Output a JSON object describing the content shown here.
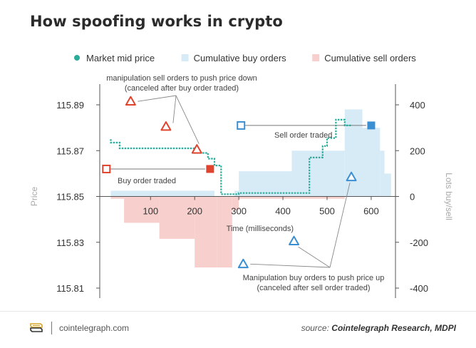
{
  "title": "How spoofing works in crypto",
  "footer": {
    "brand": "cointelegraph.com",
    "source_prefix": "source:",
    "source_text": "Cointelegraph Research, MDPI"
  },
  "colors": {
    "mid_price": "#2bab99",
    "buy_fill": "#d7ebf7",
    "sell_fill": "#f7d0cd",
    "red_marker": "#e0442f",
    "blue_marker": "#3a8fd2",
    "axis_text": "#333333",
    "label_text": "#444444",
    "faint_text": "#aaaaaa"
  },
  "chart_data": {
    "type": "line",
    "legend": [
      {
        "label": "Market mid price",
        "kind": "dot",
        "color": "#2bab99"
      },
      {
        "label": "Cumulative buy orders",
        "kind": "square",
        "color": "#d7ebf7"
      },
      {
        "label": "Cumulative sell orders",
        "kind": "square",
        "color": "#f7d0cd"
      }
    ],
    "xlabel": "Time (milliseconds)",
    "ylabel_left": "Price",
    "ylabel_right": "Lots buy/sell",
    "x_ticks": [
      100,
      200,
      300,
      400,
      500,
      600
    ],
    "x_range": [
      -15,
      655
    ],
    "y_left_range": [
      115.81,
      115.89
    ],
    "y_left_ticks": [
      115.89,
      115.87,
      115.85,
      115.83,
      115.81
    ],
    "y_right_range": [
      -400,
      400
    ],
    "y_right_ticks": [
      400,
      200,
      0,
      -200,
      -400
    ],
    "mid_price": {
      "x": [
        10,
        10,
        30,
        30,
        200,
        200,
        230,
        230,
        245,
        245,
        260,
        260,
        300,
        300,
        460,
        460,
        490,
        490,
        500,
        500,
        520,
        520,
        540,
        540,
        555
      ],
      "y": [
        115.875,
        115.8735,
        115.8735,
        115.871,
        115.871,
        115.869,
        115.869,
        115.8665,
        115.8665,
        115.8635,
        115.8635,
        115.851,
        115.851,
        115.8515,
        115.8515,
        115.867,
        115.867,
        115.872,
        115.872,
        115.8755,
        115.8755,
        115.8835,
        115.8835,
        115.881,
        115.881
      ]
    },
    "buy_orders": [
      {
        "x0": 10,
        "x1": 245,
        "value": 25
      },
      {
        "x0": 290,
        "x1": 300,
        "value": 25
      },
      {
        "x0": 300,
        "x1": 420,
        "value": 110
      },
      {
        "x0": 420,
        "x1": 540,
        "value": 200
      },
      {
        "x0": 540,
        "x1": 580,
        "value": 380
      },
      {
        "x0": 580,
        "x1": 620,
        "value": 300
      },
      {
        "x0": 620,
        "x1": 630,
        "value": 200
      },
      {
        "x0": 630,
        "x1": 645,
        "value": 100
      }
    ],
    "sell_orders": [
      {
        "x0": 10,
        "x1": 40,
        "value": -10
      },
      {
        "x0": 40,
        "x1": 120,
        "value": -115
      },
      {
        "x0": 120,
        "x1": 200,
        "value": -185
      },
      {
        "x0": 200,
        "x1": 250,
        "value": -310
      },
      {
        "x0": 250,
        "x1": 285,
        "value": -310
      },
      {
        "x0": 285,
        "x1": 300,
        "value": -60
      },
      {
        "x0": 300,
        "x1": 540,
        "value": -10
      }
    ],
    "events": [
      {
        "kind": "square-outline",
        "color": "red",
        "x": 0,
        "y": 115.862
      },
      {
        "kind": "square-filled",
        "color": "red",
        "x": 235,
        "y": 115.862
      },
      {
        "kind": "square-outline",
        "color": "blue",
        "x": 305,
        "y": 115.881
      },
      {
        "kind": "square-filled",
        "color": "blue",
        "x": 600,
        "y": 115.881
      },
      {
        "kind": "triangle",
        "color": "red",
        "x": 55,
        "y": 115.8915
      },
      {
        "kind": "triangle",
        "color": "red",
        "x": 135,
        "y": 115.8805
      },
      {
        "kind": "triangle",
        "color": "red",
        "x": 205,
        "y": 115.8705
      },
      {
        "kind": "triangle",
        "color": "blue",
        "x": 310,
        "y": 115.8205
      },
      {
        "kind": "triangle",
        "color": "blue",
        "x": 425,
        "y": 115.8305
      },
      {
        "kind": "triangle",
        "color": "blue",
        "x": 555,
        "y": 115.8585
      }
    ],
    "annotations": [
      {
        "text_lines": [
          "manipulation sell orders to push price down",
          "(canceled after buy order traded)"
        ]
      },
      {
        "text_lines": [
          "Buy order traded"
        ]
      },
      {
        "text_lines": [
          "Sell order traded"
        ]
      },
      {
        "text_lines": [
          "Manipulation buy orders to push price up",
          "(canceled after sell order traded)"
        ]
      }
    ]
  }
}
